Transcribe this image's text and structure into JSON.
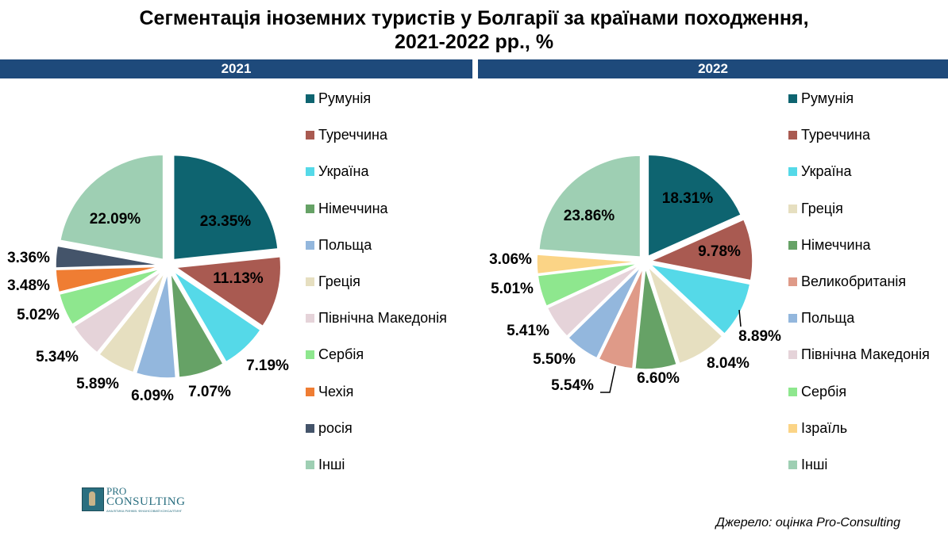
{
  "title": {
    "line1": "Сегментація іноземних туристів у Болгарії за країнами походження,",
    "line2": "2021-2022 рр., %"
  },
  "source": "Джерело: оцінка Pro-Consulting",
  "logo": {
    "pro": "PRO",
    "consulting": "CONSULTING",
    "tagline": "АНАЛІТИКА РИНКІВ. ФІНАНСОВИЙ КОНСАЛТИНГ"
  },
  "chart_data": [
    {
      "type": "pie",
      "title": "2021",
      "unit": "%",
      "slices": [
        {
          "name": "Румунія",
          "value": 23.35,
          "label": "23.35%",
          "color": "#0e6470"
        },
        {
          "name": "Туреччина",
          "value": 11.13,
          "label": "11.13%",
          "color": "#a95a51"
        },
        {
          "name": "Україна",
          "value": 7.19,
          "label": "7.19%",
          "color": "#55d9e8"
        },
        {
          "name": "Німеччина",
          "value": 7.07,
          "label": "7.07%",
          "color": "#66a266"
        },
        {
          "name": "Польща",
          "value": 6.09,
          "label": "6.09%",
          "color": "#93b7dd"
        },
        {
          "name": "Греція",
          "value": 5.89,
          "label": "5.89%",
          "color": "#e6dfc0"
        },
        {
          "name": "Північна Македонія",
          "value": 5.34,
          "label": "5.34%",
          "color": "#e5d3d9"
        },
        {
          "name": "Сербія",
          "value": 5.02,
          "label": "5.02%",
          "color": "#8ee78e"
        },
        {
          "name": "Чехія",
          "value": 3.48,
          "label": "3.48%",
          "color": "#ef7d33"
        },
        {
          "name": "росія",
          "value": 3.36,
          "label": "3.36%",
          "color": "#44546a"
        },
        {
          "name": "Інші",
          "value": 22.09,
          "label": "22.09%",
          "color": "#9ecfb3"
        }
      ]
    },
    {
      "type": "pie",
      "title": "2022",
      "unit": "%",
      "slices": [
        {
          "name": "Румунія",
          "value": 18.31,
          "label": "18.31%",
          "color": "#0e6470"
        },
        {
          "name": "Туреччина",
          "value": 9.78,
          "label": "9.78%",
          "color": "#a95a51"
        },
        {
          "name": "Україна",
          "value": 8.89,
          "label": "8.89%",
          "color": "#55d9e8"
        },
        {
          "name": "Греція",
          "value": 8.04,
          "label": "8.04%",
          "color": "#e6dfc0"
        },
        {
          "name": "Німеччина",
          "value": 6.6,
          "label": "6.60%",
          "color": "#66a266"
        },
        {
          "name": "Великобританія",
          "value": 5.54,
          "label": "5.54%",
          "color": "#df9a88"
        },
        {
          "name": "Польща",
          "value": 5.5,
          "label": "5.50%",
          "color": "#93b7dd"
        },
        {
          "name": "Північна Македонія",
          "value": 5.41,
          "label": "5.41%",
          "color": "#e5d3d9"
        },
        {
          "name": "Сербія",
          "value": 5.01,
          "label": "5.01%",
          "color": "#8ee78e"
        },
        {
          "name": "Ізраїль",
          "value": 3.06,
          "label": "3.06%",
          "color": "#fbd486"
        },
        {
          "name": "Інші",
          "value": 23.86,
          "label": "23.86%",
          "color": "#9ecfb3"
        }
      ]
    }
  ]
}
